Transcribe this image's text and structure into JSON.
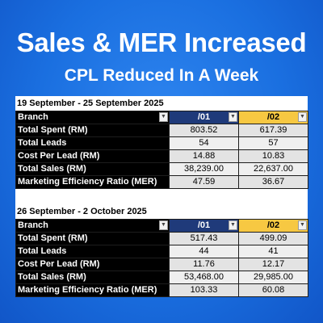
{
  "headline": "Sales & MER Increased",
  "subheadline": "CPL Reduced In A Week",
  "periods": [
    {
      "title": "19 September - 25 September 2025",
      "header": {
        "label": "Branch",
        "col_a": "/01",
        "col_b": "/02"
      },
      "rows": [
        {
          "label": "Total Spent (RM)",
          "a": "803.52",
          "b": "617.39"
        },
        {
          "label": "Total Leads",
          "a": "54",
          "b": "57"
        },
        {
          "label": "Cost Per Lead (RM)",
          "a": "14.88",
          "b": "10.83"
        },
        {
          "label": "Total Sales (RM)",
          "a": "38,239.00",
          "b": "22,637.00"
        },
        {
          "label": "Marketing Efficiency Ratio (MER)",
          "a": "47.59",
          "b": "36.67"
        }
      ]
    },
    {
      "title": "26 September - 2 October 2025",
      "header": {
        "label": "Branch",
        "col_a": "/01",
        "col_b": "/02"
      },
      "rows": [
        {
          "label": "Total Spent (RM)",
          "a": "517.43",
          "b": "499.09"
        },
        {
          "label": "Total Leads",
          "a": "44",
          "b": "41"
        },
        {
          "label": "Cost Per Lead (RM)",
          "a": "11.76",
          "b": "12.17"
        },
        {
          "label": "Total Sales (RM)",
          "a": "53,468.00",
          "b": "29,985.00"
        },
        {
          "label": "Marketing Efficiency Ratio (MER)",
          "a": "103.33",
          "b": "60.08"
        }
      ]
    }
  ]
}
